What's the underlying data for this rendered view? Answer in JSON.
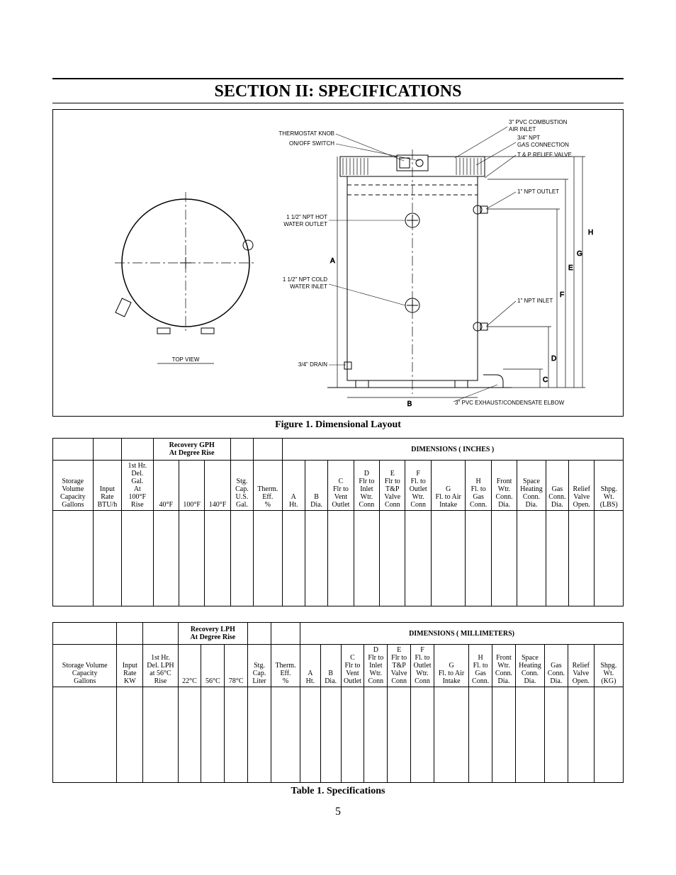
{
  "section_title": "SECTION II: SPECIFICATIONS",
  "figure_caption": "Figure 1. Dimensional Layout",
  "table_caption": "Table 1.  Specifications",
  "page_number": "5",
  "diagram": {
    "top_view_label": "TOP VIEW",
    "callouts_left": [
      "THERMOSTAT KNOB",
      "ON/OFF SWITCH",
      "1 1/2\" NPT HOT\nWATER OUTLET",
      "1 1/2\" NPT COLD\nWATER INLET",
      "3/4\" DRAIN"
    ],
    "callouts_right": [
      "3\" PVC COMBUSTION\nAIR INLET",
      "3/4\" NPT\nGAS CONNECTION",
      "T & P RELIEF VALVE",
      "1\" NPT OUTLET",
      "1\" NPT INLET",
      "3\" PVC EXHAUST/CONDENSATE ELBOW"
    ],
    "dim_letters": [
      "A",
      "B",
      "C",
      "D",
      "E",
      "F",
      "G",
      "H"
    ]
  },
  "table_inches": {
    "top_groups": {
      "recovery": "Recovery GPH\nAt Degree Rise",
      "dimensions": "DIMENSIONS  ( INCHES )"
    },
    "headers": {
      "c0": "Storage Volume Capacity Gallons",
      "c1": "Input Rate BTU/h",
      "c2": "1st Hr. Del. Gal. At 100°F Rise",
      "c3": "40°F",
      "c4": "100°F",
      "c5": "140°F",
      "c6": "Stg. Cap. U.S. Gal.",
      "c7": "Therm. Eff. %",
      "c8": "A Ht.",
      "c9": "B Dia.",
      "c10": "C Flr to Vent Outlet",
      "c11": "D Flr to Inlet Wtr. Conn",
      "c12": "E Flr to T&P Valve Conn",
      "c13": "F Fl. to Outlet Wtr. Conn",
      "c14": "G Fl. to Air Intake",
      "c15": "H Fl. to Gas Conn.",
      "c16": "Front Wtr. Conn. Dia.",
      "c17": "Space Heating Conn. Dia.",
      "c18": "Gas Conn. Dia.",
      "c19": "Relief Valve Open.",
      "c20": "Shpg. Wt. (LBS)"
    }
  },
  "table_mm": {
    "top_groups": {
      "recovery": "Recovery LPH\nAt Degree Rise",
      "dimensions": "DIMENSIONS  ( MILLIMETERS)"
    },
    "headers": {
      "c0": "Storage Volume Capacity Gallons",
      "c1": "Input Rate KW",
      "c2": "1st Hr. Del. LPH at 56°C Rise",
      "c3": "22°C",
      "c4": "56°C",
      "c5": "78°C",
      "c6": "Stg. Cap. Liter",
      "c7": "Therm. Eff. %",
      "c8": "A Ht.",
      "c9": "B Dia.",
      "c10": "C Flr to Vent Outlet",
      "c11": "D Flr to Inlet Wtr. Conn",
      "c12": "E Flr to T&P Valve Conn",
      "c13": "F Fl. to Outlet Wtr. Conn",
      "c14": "G Fl. to Air Intake",
      "c15": "H Fl. to Gas Conn.",
      "c16": "Front Wtr. Conn. Dia.",
      "c17": "Space Heating Conn. Dia.",
      "c18": "Gas Conn. Dia.",
      "c19": "Relief Valve Open.",
      "c20": "Shpg. Wt. (KG)"
    }
  },
  "colors": {
    "line": "#000000",
    "hatch": "#000000",
    "bg": "#ffffff"
  }
}
